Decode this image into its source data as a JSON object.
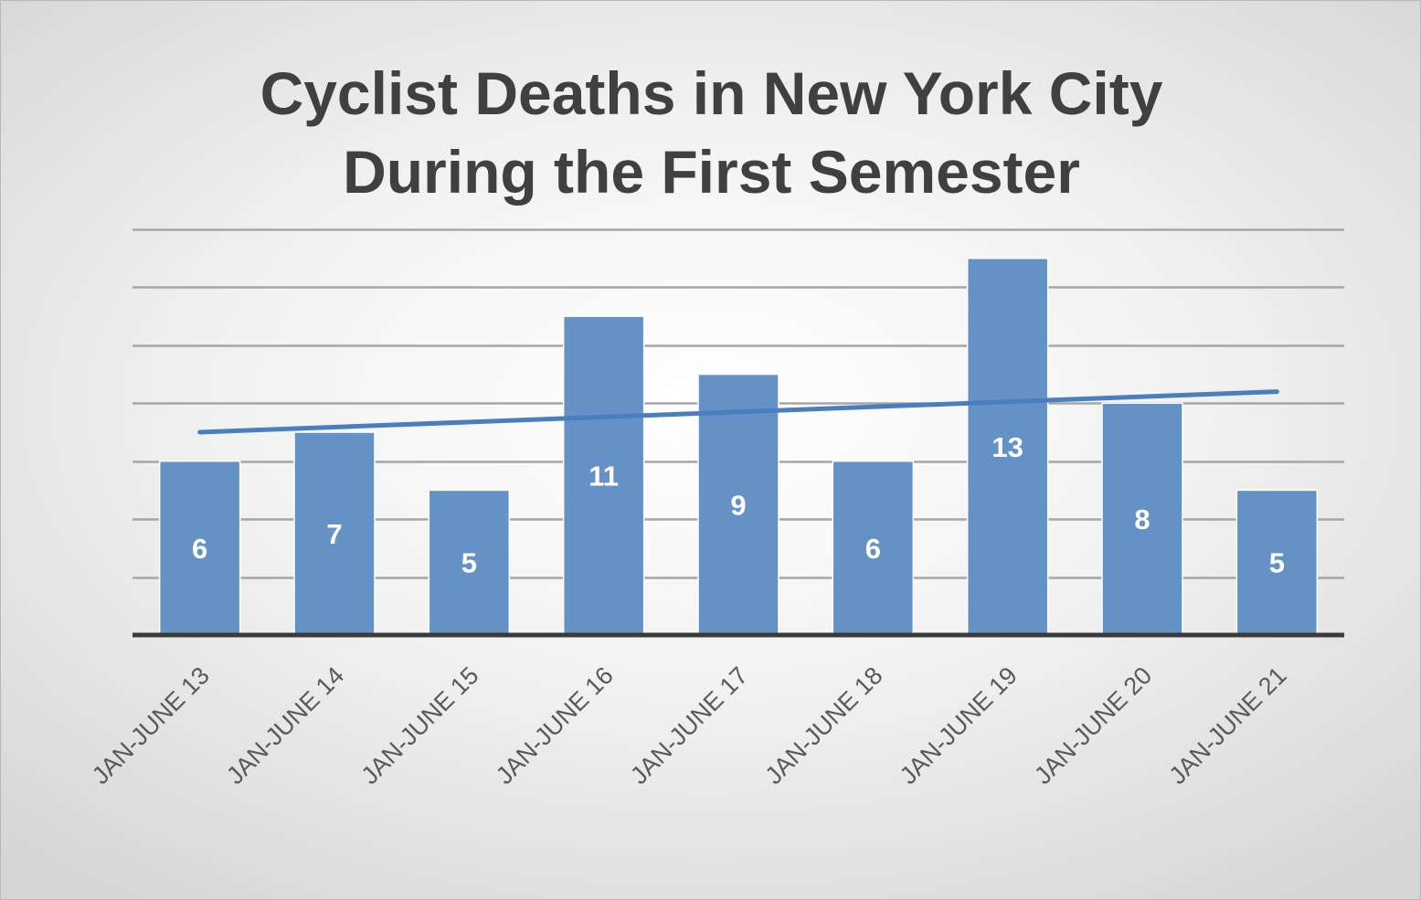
{
  "title": {
    "line1": "Cyclist Deaths in New York City",
    "line2": "During the First Semester"
  },
  "colors": {
    "bar": "#6491c6",
    "bar_border": "#ffffff",
    "trendline": "#4a7ebf",
    "gridline": "#a6a6a6",
    "axis": "#3a3a3a",
    "label": "#ffffff",
    "title": "#404040"
  },
  "chart_data": {
    "type": "bar",
    "title": "Cyclist Deaths in New York City During the First Semester",
    "xlabel": "",
    "ylabel": "",
    "categories": [
      "JAN-JUNE 13",
      "JAN-JUNE 14",
      "JAN-JUNE 15",
      "JAN-JUNE 16",
      "JAN-JUNE 17",
      "JAN-JUNE 18",
      "JAN-JUNE 19",
      "JAN-JUNE 20",
      "JAN-JUNE 21"
    ],
    "values": [
      6,
      7,
      5,
      11,
      9,
      6,
      13,
      8,
      5
    ],
    "ylim": [
      0,
      14
    ],
    "y_axis_visible": false,
    "grid": true,
    "legend": "none",
    "trendline": {
      "type": "linear",
      "start": 7.0,
      "end": 8.4
    }
  }
}
